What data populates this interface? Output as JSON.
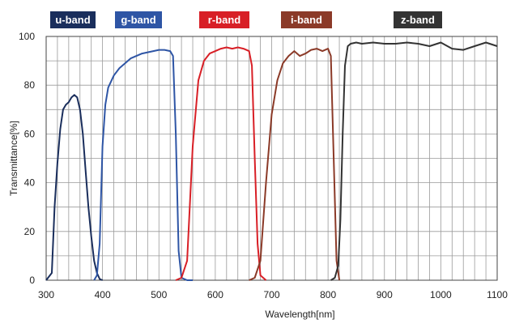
{
  "chart_data": {
    "type": "line",
    "title": "",
    "xlabel": "Wavelength[nm]",
    "ylabel": "Transmittance[%]",
    "xlim": [
      300,
      1100
    ],
    "ylim": [
      0,
      100
    ],
    "xticks": [
      "300",
      "400",
      "500",
      "600",
      "700",
      "800",
      "900",
      "1000",
      "1100"
    ],
    "yticks": [
      "0",
      "20",
      "40",
      "60",
      "80",
      "100"
    ],
    "grid": true,
    "legend_placement": "top",
    "series": [
      {
        "name": "u-band",
        "color": "#1a2e5c",
        "x": [
          300,
          310,
          315,
          320,
          325,
          330,
          335,
          340,
          345,
          350,
          355,
          360,
          365,
          370,
          375,
          380,
          385,
          390,
          395,
          400
        ],
        "y": [
          0,
          3,
          30,
          48,
          62,
          70,
          72,
          73,
          75,
          76,
          75,
          70,
          60,
          45,
          30,
          18,
          8,
          3,
          0.5,
          0
        ]
      },
      {
        "name": "g-band",
        "color": "#2e55a5",
        "x": [
          385,
          390,
          395,
          400,
          405,
          410,
          420,
          430,
          440,
          450,
          460,
          470,
          480,
          490,
          500,
          510,
          520,
          525,
          530,
          535,
          540,
          550,
          560
        ],
        "y": [
          0,
          2,
          15,
          55,
          72,
          79,
          84,
          87,
          89,
          91,
          92,
          93,
          93.5,
          94,
          94.5,
          94.5,
          94,
          92,
          60,
          12,
          1,
          0,
          0
        ]
      },
      {
        "name": "r-band",
        "color": "#d81f26",
        "x": [
          530,
          540,
          550,
          560,
          570,
          580,
          590,
          600,
          610,
          620,
          630,
          640,
          650,
          660,
          665,
          670,
          675,
          680,
          690
        ],
        "y": [
          0,
          1,
          8,
          55,
          82,
          90,
          93,
          94,
          95,
          95.5,
          95,
          95.5,
          95,
          94,
          88,
          50,
          15,
          2,
          0
        ]
      },
      {
        "name": "i-band",
        "color": "#8b3a28",
        "x": [
          660,
          670,
          680,
          690,
          700,
          710,
          720,
          730,
          740,
          750,
          760,
          770,
          780,
          790,
          800,
          805,
          810,
          815,
          820
        ],
        "y": [
          0,
          1,
          8,
          40,
          68,
          82,
          89,
          92,
          94,
          92,
          93,
          94.5,
          95,
          94,
          95,
          92,
          50,
          8,
          0
        ]
      },
      {
        "name": "z-band",
        "color": "#333333",
        "x": [
          805,
          812,
          818,
          822,
          826,
          830,
          835,
          840,
          850,
          860,
          880,
          900,
          920,
          940,
          960,
          980,
          1000,
          1020,
          1040,
          1060,
          1080,
          1100
        ],
        "y": [
          0,
          1,
          6,
          25,
          60,
          88,
          96,
          97,
          97.5,
          97,
          97.5,
          97,
          97,
          97.5,
          97,
          96,
          97.5,
          95,
          94.5,
          96,
          97.5,
          96
        ]
      }
    ]
  }
}
